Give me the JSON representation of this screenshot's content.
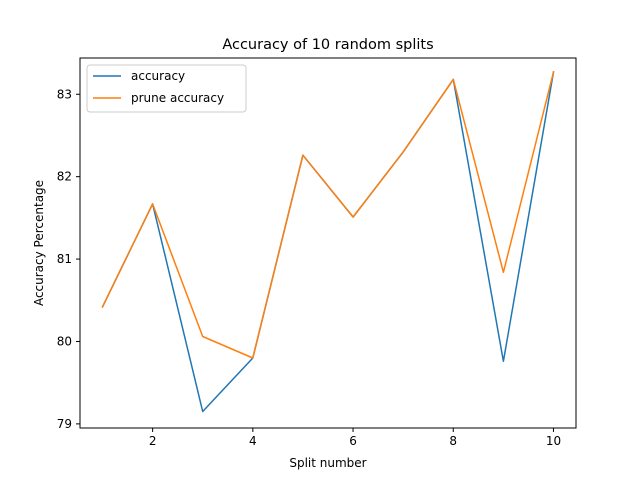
{
  "chart_data": {
    "type": "line",
    "title": "Accuracy of 10 random splits",
    "xlabel": "Split number",
    "ylabel": "Accuracy Percentage",
    "x": [
      1,
      2,
      3,
      4,
      5,
      6,
      7,
      8,
      9,
      10
    ],
    "series": [
      {
        "name": "accuracy",
        "color": "#1f77b4",
        "values": [
          80.42,
          81.67,
          79.15,
          79.8,
          82.26,
          81.51,
          82.3,
          83.18,
          79.76,
          83.27
        ]
      },
      {
        "name": "prune accuracy",
        "color": "#ff7f0e",
        "values": [
          80.42,
          81.67,
          80.06,
          79.8,
          82.26,
          81.51,
          82.3,
          83.18,
          80.84,
          83.27
        ]
      }
    ],
    "xlim": [
      0.55,
      10.45
    ],
    "ylim": [
      78.95,
      83.44
    ],
    "xticks": [
      2,
      4,
      6,
      8,
      10
    ],
    "yticks": [
      79,
      80,
      81,
      82,
      83
    ],
    "grid": false,
    "legend_position": "top-left"
  }
}
